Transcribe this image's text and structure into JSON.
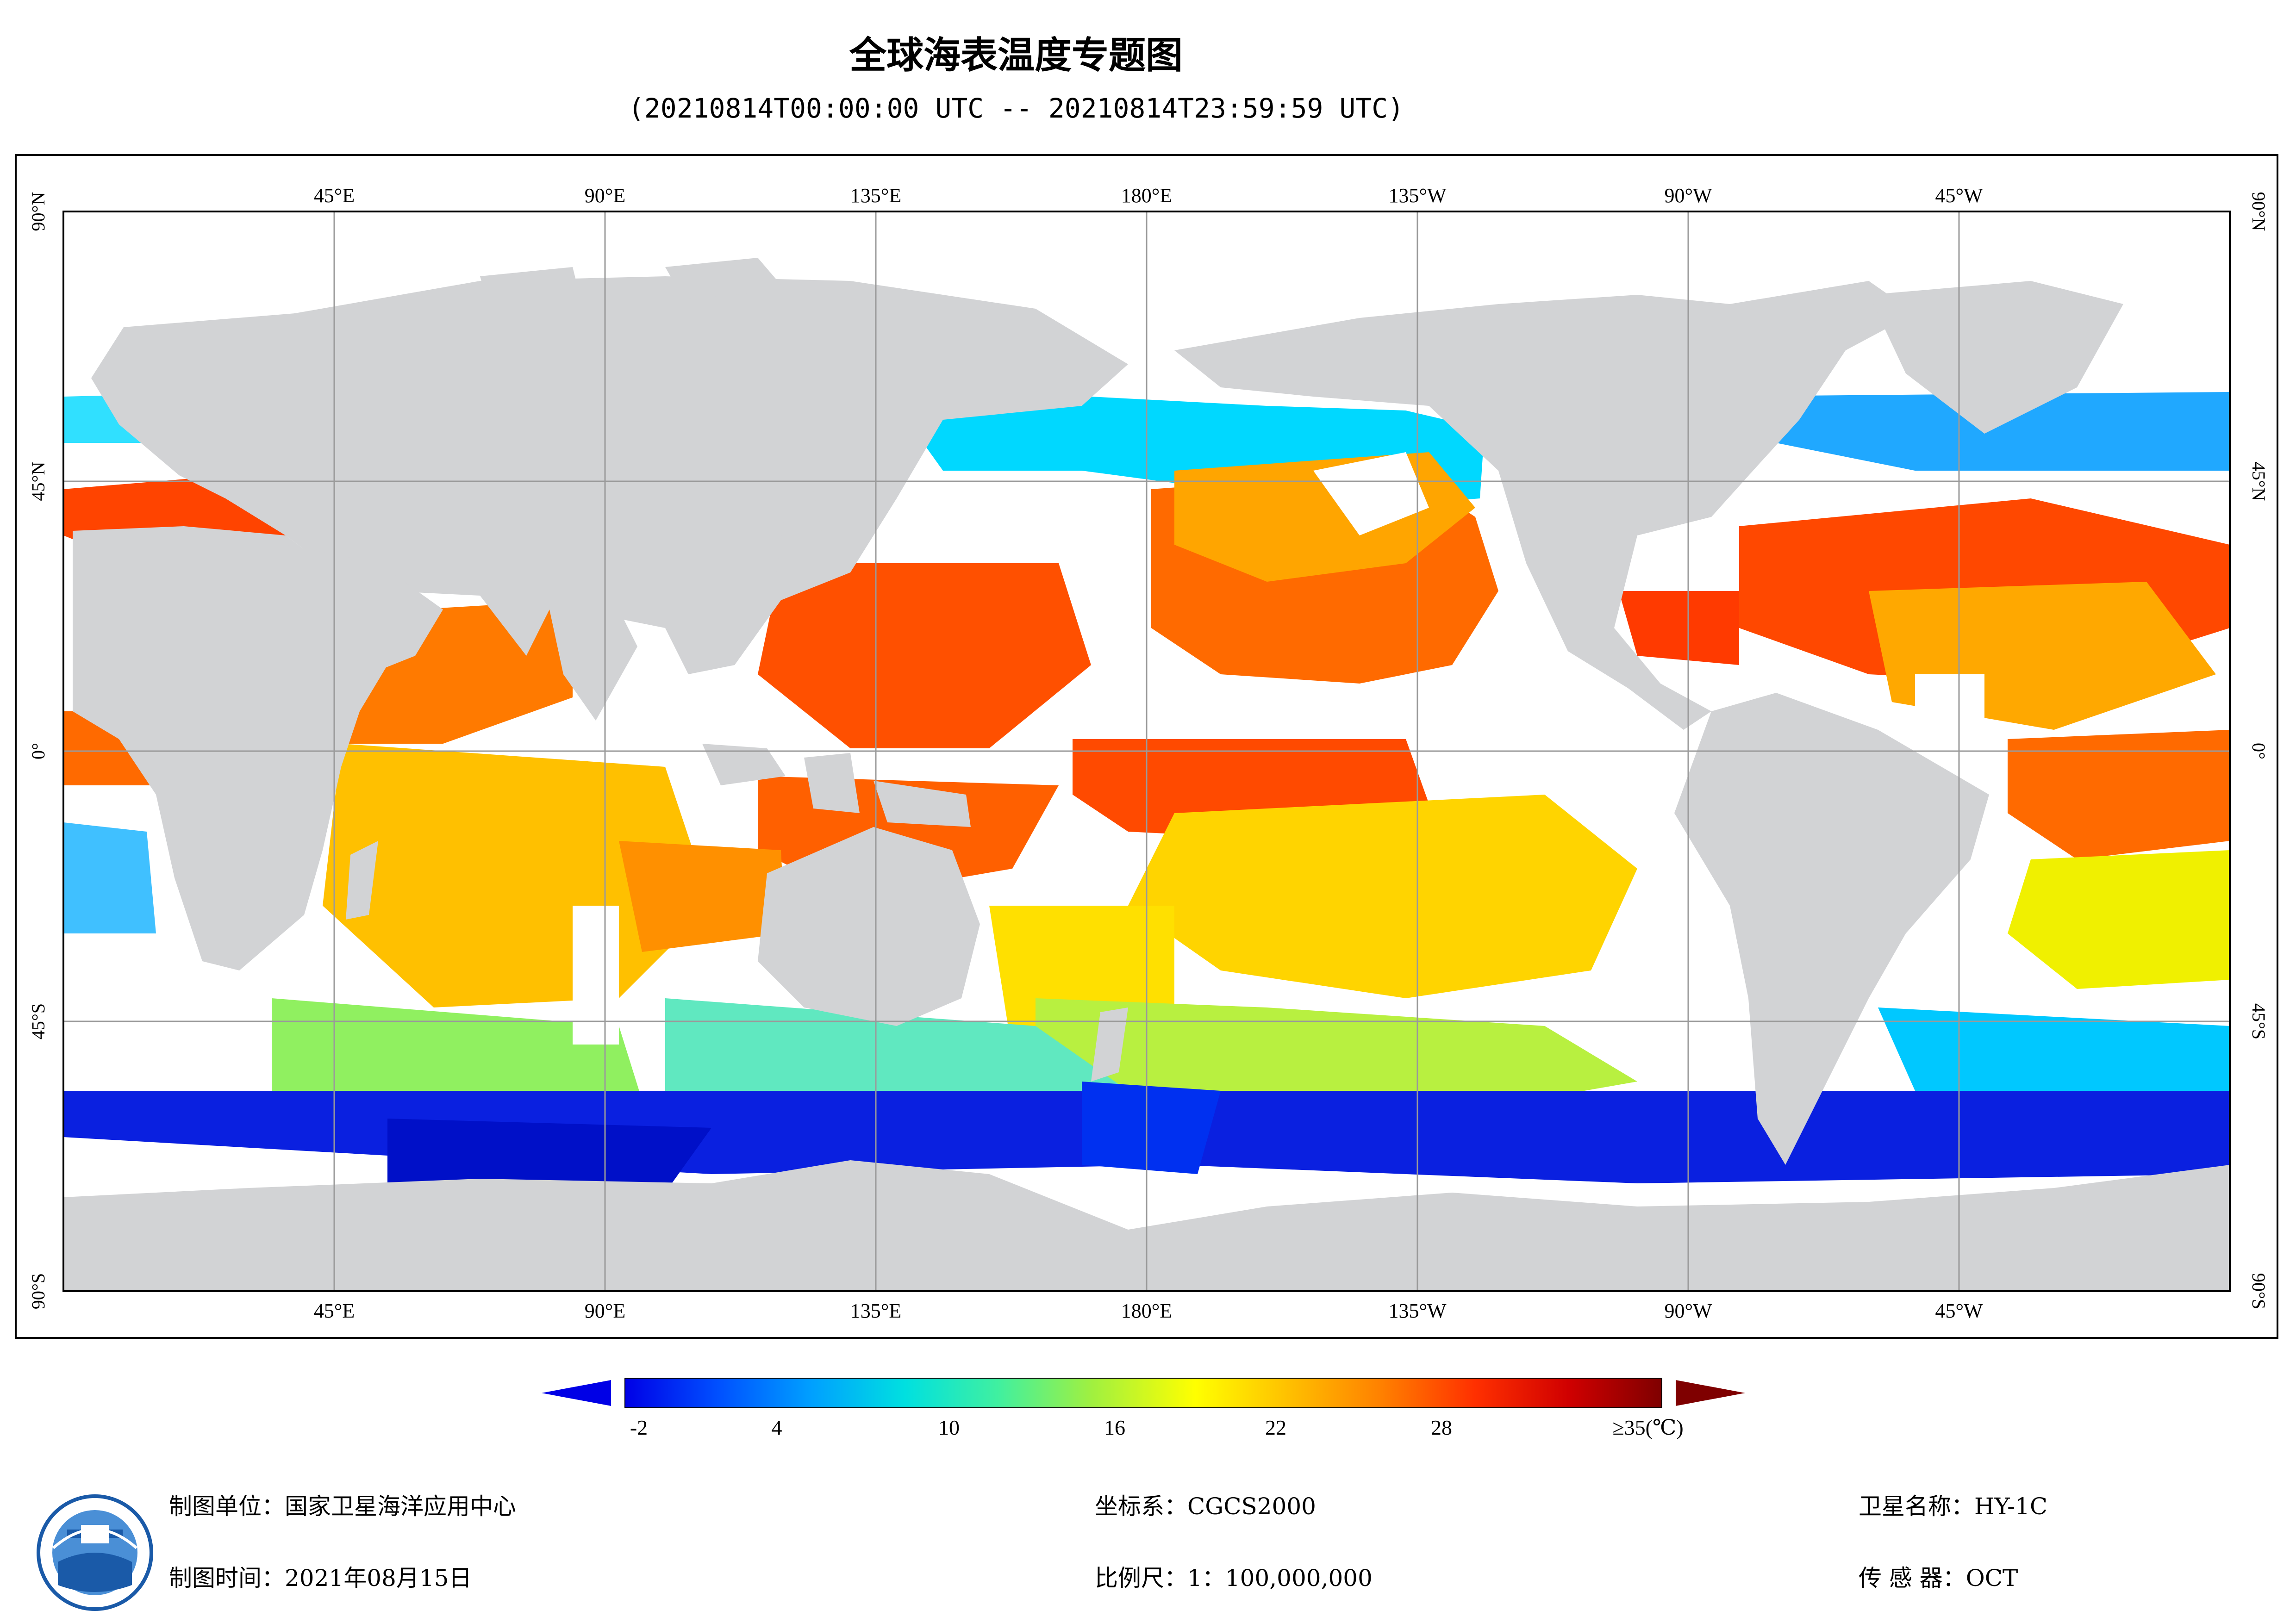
{
  "title": "全球海表温度专题图",
  "subtitle": "(20210814T00:00:00 UTC -- 20210814T23:59:59 UTC)",
  "map": {
    "top_lon_labels": [
      "45°E",
      "90°E",
      "135°E",
      "180°E",
      "135°W",
      "90°W",
      "45°W"
    ],
    "bottom_lon_labels": [
      "45°E",
      "90°E",
      "135°E",
      "180°E",
      "135°W",
      "90°W",
      "45°W"
    ],
    "lat_labels": [
      "90°N",
      "45°N",
      "0°",
      "45°S",
      "90°S"
    ],
    "colors": {
      "land": "#d2d3d5",
      "no_data": "#ffffff",
      "grid": "#9a9a9a"
    }
  },
  "colorbar": {
    "tick_labels": [
      "-2",
      "4",
      "10",
      "16",
      "22",
      "28"
    ],
    "max_label": "≥35(℃)",
    "colors": [
      "#0000e6",
      "#0050ff",
      "#00a0ff",
      "#00e0e0",
      "#40f0a0",
      "#a0f040",
      "#ffff00",
      "#ffc000",
      "#ff8000",
      "#ff3000",
      "#d00000",
      "#7f0000"
    ]
  },
  "footer": {
    "unit": "制图单位：国家卫星海洋应用中心",
    "time": "制图时间：2021年08月15日",
    "crs": "坐标系：CGCS2000",
    "scale": "比例尺：1：100,000,000",
    "satellite": "卫星名称：HY-1C",
    "sensor": "传  感  器：OCT"
  }
}
